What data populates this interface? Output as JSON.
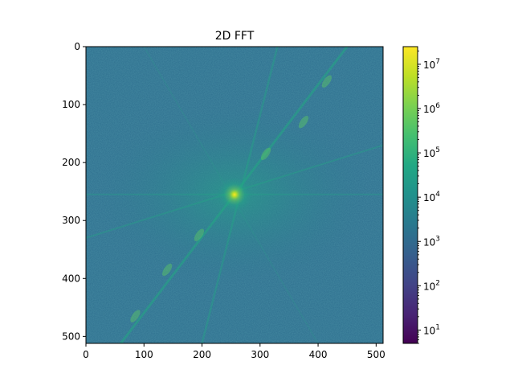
{
  "chart_data": {
    "type": "heatmap",
    "title": "2D FFT",
    "xlabel": "",
    "ylabel": "",
    "image_size": [
      512,
      512
    ],
    "xlim": [
      0,
      512
    ],
    "ylim": [
      512,
      0
    ],
    "x_ticks": [
      0,
      100,
      200,
      300,
      400,
      500
    ],
    "y_ticks": [
      0,
      100,
      200,
      300,
      400,
      500
    ],
    "x_tick_labels": [
      "0",
      "100",
      "200",
      "300",
      "400",
      "500"
    ],
    "y_tick_labels": [
      "0",
      "100",
      "200",
      "300",
      "400",
      "500"
    ],
    "colormap": "viridis",
    "colorbar": {
      "scale": "log",
      "range": [
        5,
        25000000
      ],
      "ticks": [
        10,
        100,
        1000,
        10000,
        100000,
        1000000,
        10000000
      ],
      "tick_labels": [
        {
          "base": "10",
          "exp": "1"
        },
        {
          "base": "10",
          "exp": "2"
        },
        {
          "base": "10",
          "exp": "3"
        },
        {
          "base": "10",
          "exp": "4"
        },
        {
          "base": "10",
          "exp": "5"
        },
        {
          "base": "10",
          "exp": "6"
        },
        {
          "base": "10",
          "exp": "7"
        }
      ]
    },
    "center_peak": [
      256,
      256
    ],
    "colors": {
      "background_low": "#33638d",
      "mid": "#21918c",
      "high": "#5ec962",
      "peak": "#fde725"
    }
  }
}
